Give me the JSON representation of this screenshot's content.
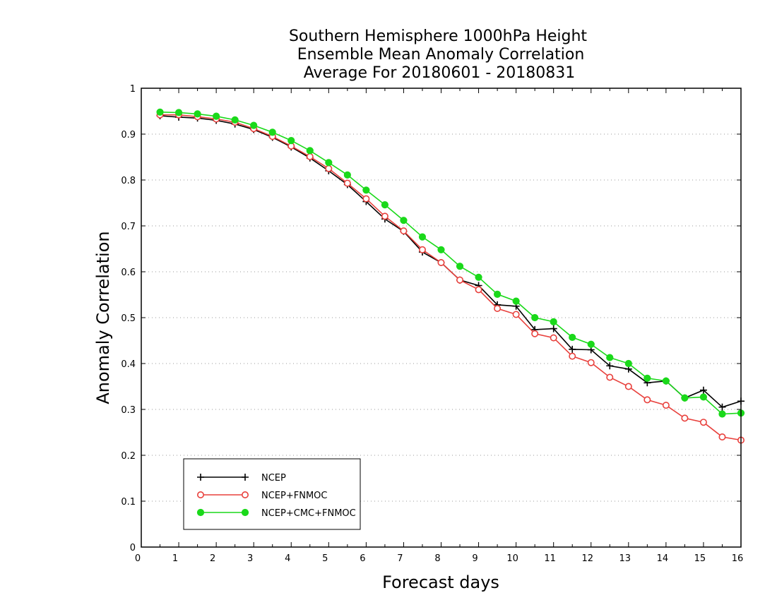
{
  "chart_data": {
    "type": "line",
    "title": [
      "Southern Hemisphere 1000hPa Height",
      "Ensemble Mean Anomaly Correlation",
      "Average For 20180601 - 20180831"
    ],
    "xlabel": "Forecast days",
    "ylabel": "Anomaly Correlation",
    "xlim": [
      0,
      16
    ],
    "ylim": [
      0,
      1
    ],
    "xticks": [
      "0",
      "1",
      "2",
      "3",
      "4",
      "5",
      "6",
      "7",
      "8",
      "9",
      "10",
      "11",
      "12",
      "13",
      "14",
      "15",
      "16"
    ],
    "yticks": [
      "0",
      "0.1",
      "0.2",
      "0.3",
      "0.4",
      "0.5",
      "0.6",
      "0.7",
      "0.8",
      "0.9",
      "1"
    ],
    "grid": true,
    "legend_position": "bottom-left",
    "x": [
      0.5,
      1,
      1.5,
      2,
      2.5,
      3,
      3.5,
      4,
      4.5,
      5,
      5.5,
      6,
      6.5,
      7,
      7.5,
      8,
      8.5,
      9,
      9.5,
      10,
      10.5,
      11,
      11.5,
      12,
      12.5,
      13,
      13.5,
      14,
      14.5,
      15,
      15.5,
      16
    ],
    "series": [
      {
        "name": "NCEP",
        "color": "#000000",
        "marker": "plus",
        "values": [
          0.94,
          0.937,
          0.935,
          0.93,
          0.922,
          0.91,
          0.893,
          0.872,
          0.848,
          0.82,
          0.79,
          0.753,
          0.715,
          0.688,
          0.643,
          0.62,
          0.582,
          0.57,
          0.528,
          0.525,
          0.474,
          0.476,
          0.431,
          0.43,
          0.395,
          0.388,
          0.358,
          0.362,
          0.325,
          0.342,
          0.305,
          0.318
        ]
      },
      {
        "name": "NCEP+FNMOC",
        "color": "#e8403c",
        "marker": "open-circle",
        "values": [
          0.942,
          0.942,
          0.938,
          0.933,
          0.926,
          0.912,
          0.895,
          0.874,
          0.851,
          0.825,
          0.793,
          0.759,
          0.721,
          0.689,
          0.648,
          0.62,
          0.582,
          0.561,
          0.52,
          0.507,
          0.465,
          0.456,
          0.416,
          0.402,
          0.37,
          0.35,
          0.321,
          0.309,
          0.281,
          0.272,
          0.24,
          0.233
        ]
      },
      {
        "name": "NCEP+CMC+FNMOC",
        "color": "#1ad91a",
        "marker": "filled-circle",
        "values": [
          0.948,
          0.947,
          0.944,
          0.939,
          0.931,
          0.919,
          0.904,
          0.886,
          0.864,
          0.838,
          0.811,
          0.778,
          0.746,
          0.712,
          0.676,
          0.648,
          0.612,
          0.588,
          0.551,
          0.536,
          0.5,
          0.491,
          0.457,
          0.442,
          0.413,
          0.4,
          0.368,
          0.362,
          0.325,
          0.327,
          0.29,
          0.292
        ]
      }
    ]
  }
}
